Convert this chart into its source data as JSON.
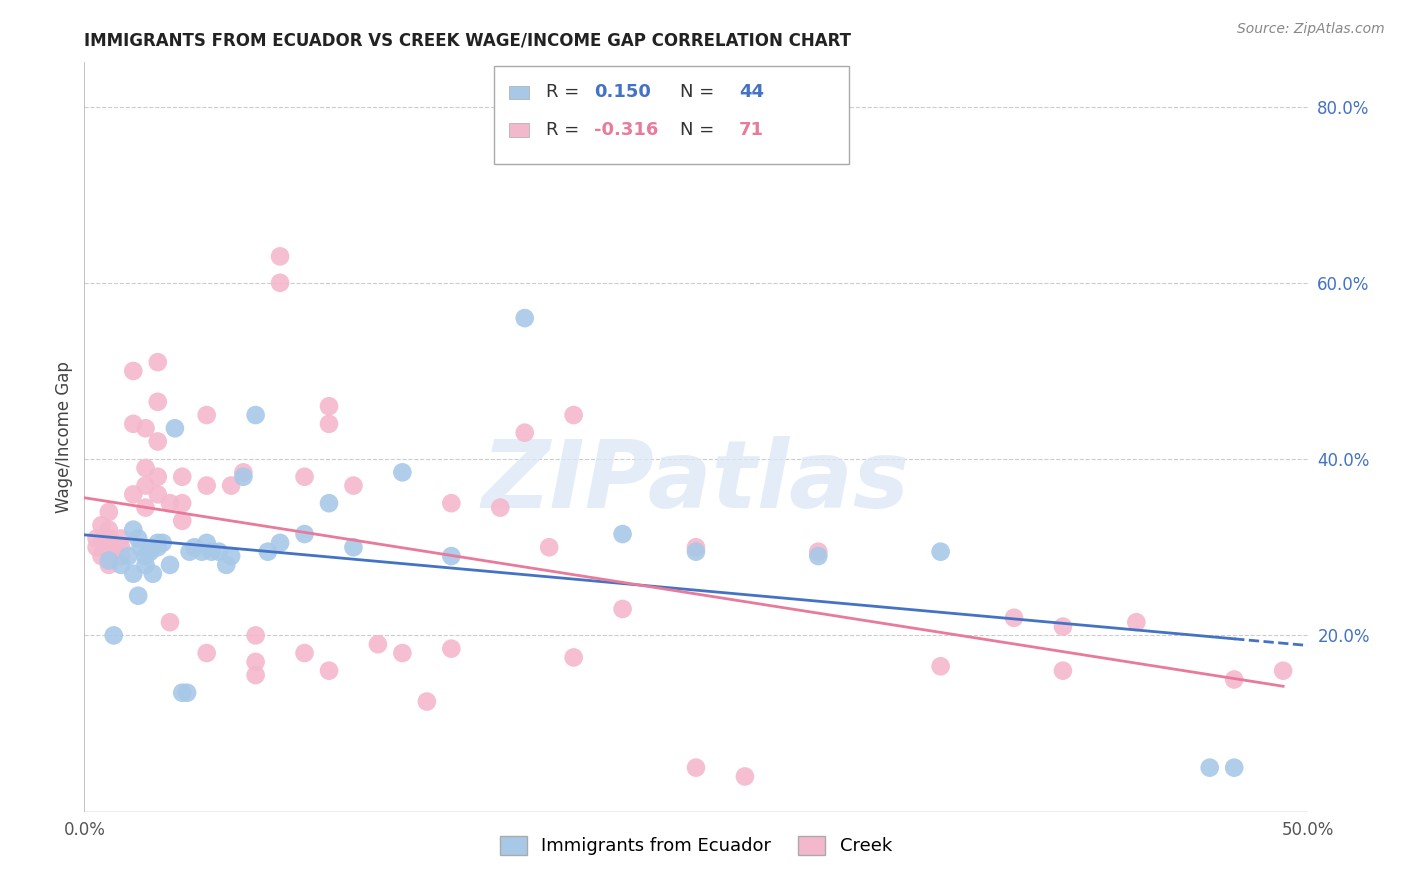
{
  "title": "IMMIGRANTS FROM ECUADOR VS CREEK WAGE/INCOME GAP CORRELATION CHART",
  "source": "Source: ZipAtlas.com",
  "ylabel": "Wage/Income Gap",
  "xlim": [
    0.0,
    0.5
  ],
  "ylim": [
    0.0,
    0.85
  ],
  "xtick_vals": [
    0.0,
    0.1,
    0.2,
    0.3,
    0.4,
    0.5
  ],
  "xtick_labels": [
    "0.0%",
    "",
    "",
    "",
    "",
    "50.0%"
  ],
  "ytick_vals": [
    0.0,
    0.2,
    0.4,
    0.6,
    0.8
  ],
  "ytick_labels": [
    "",
    "20.0%",
    "40.0%",
    "60.0%",
    "80.0%"
  ],
  "background_color": "#ffffff",
  "grid_color": "#cccccc",
  "watermark": "ZIPatlas",
  "blue_color": "#a8c8e8",
  "pink_color": "#f4b8cc",
  "blue_line_color": "#4472c4",
  "pink_line_color": "#e87a9a",
  "legend_R_blue": "0.150",
  "legend_N_blue": "44",
  "legend_R_pink": "-0.316",
  "legend_N_pink": "71",
  "blue_label": "Immigrants from Ecuador",
  "pink_label": "Creek",
  "blue_x": [
    0.01,
    0.012,
    0.015,
    0.018,
    0.02,
    0.02,
    0.022,
    0.022,
    0.023,
    0.025,
    0.025,
    0.027,
    0.028,
    0.03,
    0.03,
    0.032,
    0.035,
    0.037,
    0.04,
    0.042,
    0.043,
    0.045,
    0.048,
    0.05,
    0.052,
    0.055,
    0.058,
    0.06,
    0.065,
    0.07,
    0.075,
    0.08,
    0.09,
    0.1,
    0.11,
    0.13,
    0.15,
    0.18,
    0.22,
    0.25,
    0.3,
    0.35,
    0.46,
    0.47
  ],
  "blue_y": [
    0.285,
    0.2,
    0.28,
    0.29,
    0.32,
    0.27,
    0.245,
    0.31,
    0.3,
    0.29,
    0.28,
    0.295,
    0.27,
    0.3,
    0.305,
    0.305,
    0.28,
    0.435,
    0.135,
    0.135,
    0.295,
    0.3,
    0.295,
    0.305,
    0.295,
    0.295,
    0.28,
    0.29,
    0.38,
    0.45,
    0.295,
    0.305,
    0.315,
    0.35,
    0.3,
    0.385,
    0.29,
    0.56,
    0.315,
    0.295,
    0.29,
    0.295,
    0.05,
    0.05
  ],
  "pink_x": [
    0.005,
    0.005,
    0.007,
    0.007,
    0.008,
    0.008,
    0.01,
    0.01,
    0.01,
    0.01,
    0.01,
    0.01,
    0.01,
    0.015,
    0.015,
    0.015,
    0.02,
    0.02,
    0.02,
    0.025,
    0.025,
    0.025,
    0.025,
    0.03,
    0.03,
    0.03,
    0.03,
    0.03,
    0.035,
    0.035,
    0.04,
    0.04,
    0.04,
    0.05,
    0.05,
    0.05,
    0.06,
    0.065,
    0.07,
    0.07,
    0.07,
    0.08,
    0.08,
    0.09,
    0.09,
    0.1,
    0.1,
    0.1,
    0.11,
    0.12,
    0.13,
    0.14,
    0.15,
    0.15,
    0.17,
    0.18,
    0.19,
    0.2,
    0.2,
    0.22,
    0.25,
    0.25,
    0.27,
    0.3,
    0.35,
    0.38,
    0.4,
    0.4,
    0.43,
    0.47,
    0.49
  ],
  "pink_y": [
    0.3,
    0.31,
    0.29,
    0.325,
    0.31,
    0.3,
    0.32,
    0.34,
    0.31,
    0.3,
    0.31,
    0.295,
    0.28,
    0.31,
    0.3,
    0.29,
    0.5,
    0.44,
    0.36,
    0.435,
    0.39,
    0.37,
    0.345,
    0.51,
    0.465,
    0.42,
    0.38,
    0.36,
    0.35,
    0.215,
    0.38,
    0.35,
    0.33,
    0.45,
    0.37,
    0.18,
    0.37,
    0.385,
    0.2,
    0.17,
    0.155,
    0.63,
    0.6,
    0.38,
    0.18,
    0.46,
    0.44,
    0.16,
    0.37,
    0.19,
    0.18,
    0.125,
    0.35,
    0.185,
    0.345,
    0.43,
    0.3,
    0.45,
    0.175,
    0.23,
    0.3,
    0.05,
    0.04,
    0.295,
    0.165,
    0.22,
    0.21,
    0.16,
    0.215,
    0.15,
    0.16
  ]
}
